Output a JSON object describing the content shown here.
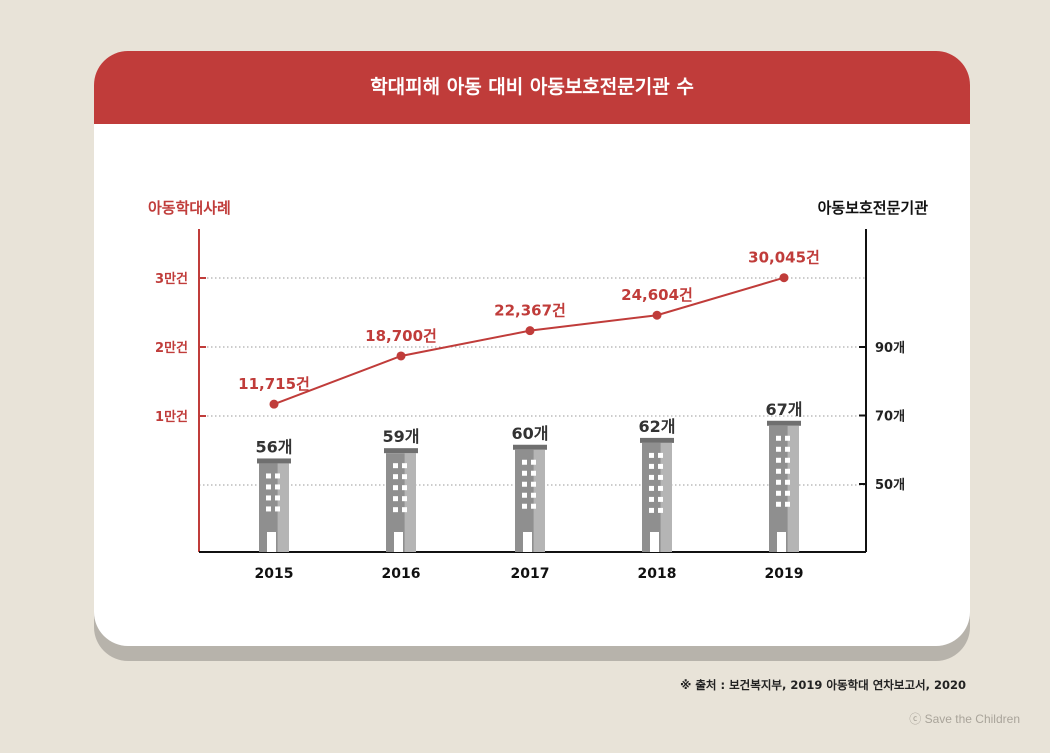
{
  "title": "학대피해 아동 대비 아동보호전문기관 수",
  "source": "※ 출처 : 보건복지부, 2019 아동학대 연차보고서, 2020",
  "copyright": "ⓒ Save the Children",
  "colors": {
    "accent": "#c03c3a",
    "building": "#8f8f8f",
    "building_light": "#b5b5b5",
    "text_dark": "#333333"
  },
  "chart_data": {
    "type": "bar+line",
    "categories": [
      "2015",
      "2016",
      "2017",
      "2018",
      "2019"
    ],
    "left_axis": {
      "label": "아동학대사례",
      "ticks": [
        {
          "value": 10000,
          "label": "1만건"
        },
        {
          "value": 20000,
          "label": "2만건"
        },
        {
          "value": 30000,
          "label": "3만건"
        }
      ]
    },
    "right_axis": {
      "label": "아동보호전문기관",
      "ticks": [
        {
          "value": 50,
          "label": "50개"
        },
        {
          "value": 70,
          "label": "70개"
        },
        {
          "value": 90,
          "label": "90개"
        }
      ]
    },
    "line_series": {
      "values": [
        11715,
        18700,
        22367,
        24604,
        30045
      ],
      "labels": [
        "11,715건",
        "18,700건",
        "22,367건",
        "24,604건",
        "30,045건"
      ]
    },
    "bar_series": {
      "values": [
        56,
        59,
        60,
        62,
        67
      ],
      "labels": [
        "56개",
        "59개",
        "60개",
        "62개",
        "67개"
      ]
    },
    "grid": true
  }
}
